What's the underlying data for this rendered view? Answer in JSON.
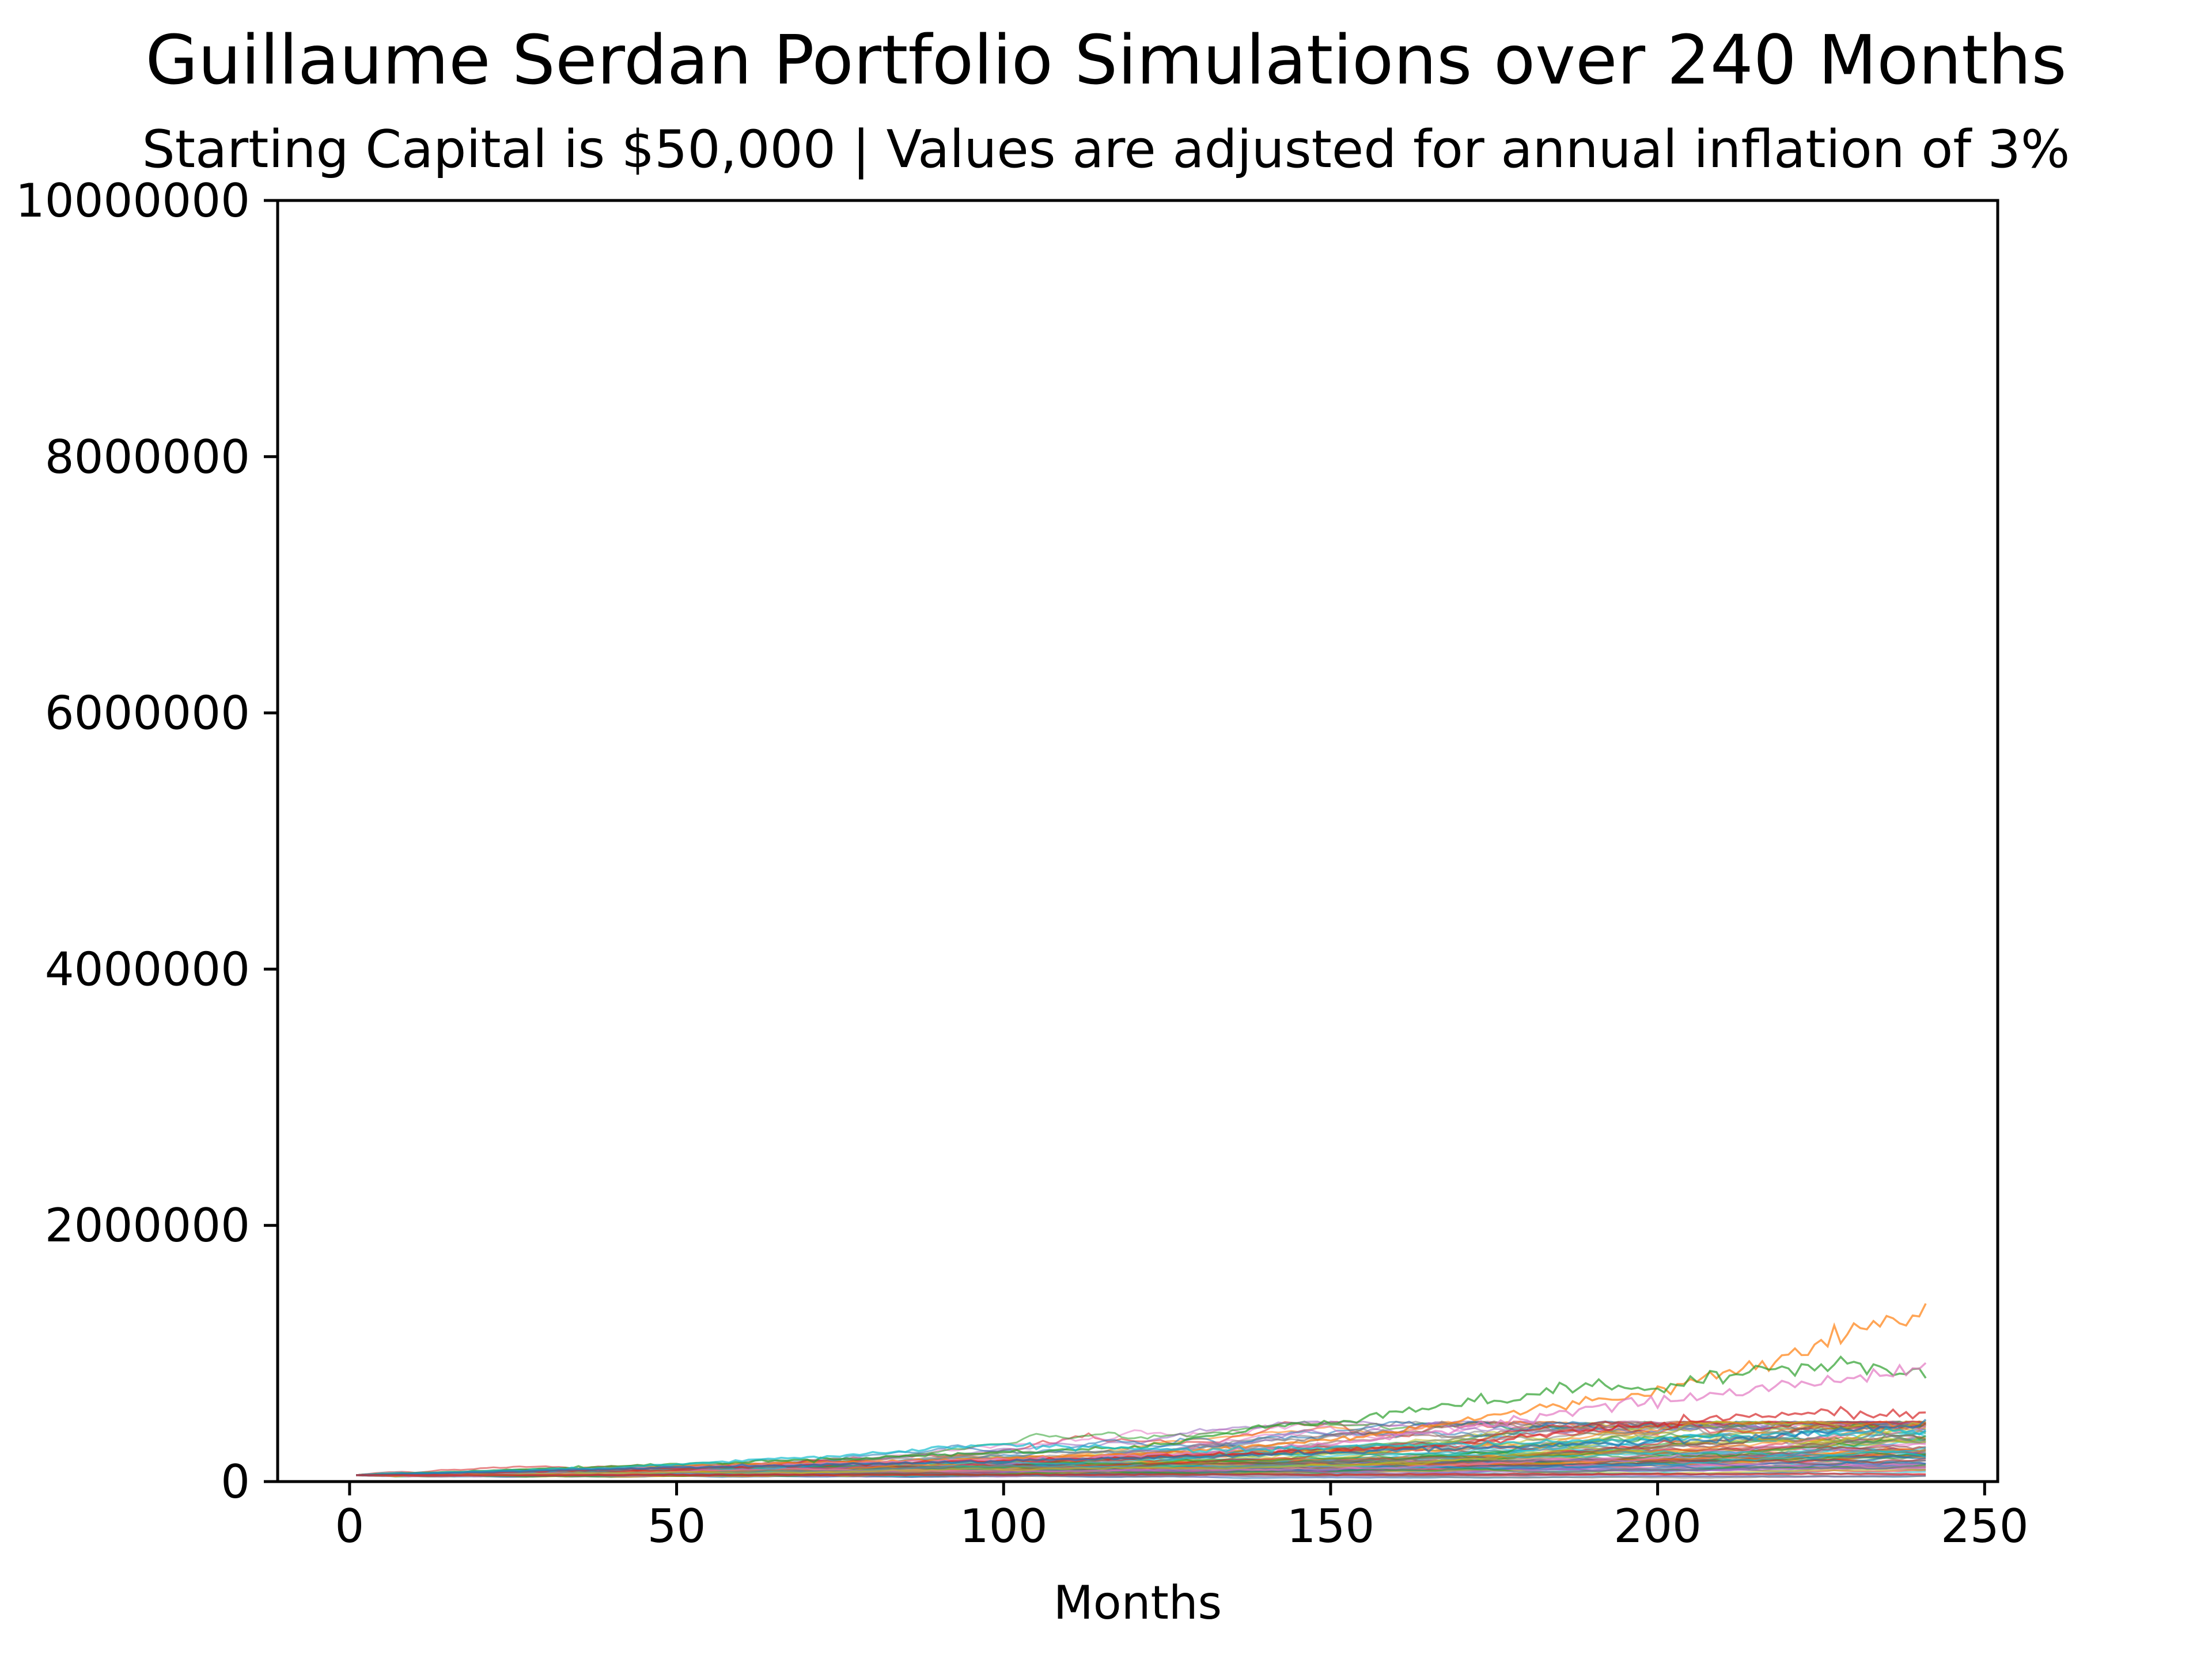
{
  "chart_data": {
    "type": "line",
    "title": "Guillaume Serdan Portfolio Simulations over 240 Months",
    "subtitle": "Starting Capital is $50,000 | Values are adjusted for annual inflation of 3%",
    "xlabel": "Months",
    "ylabel": "",
    "xlim": [
      -11,
      252
    ],
    "ylim": [
      0,
      10000000
    ],
    "x_ticks": [
      0,
      50,
      100,
      150,
      200,
      250
    ],
    "x_tick_labels": [
      "0",
      "50",
      "100",
      "150",
      "200",
      "250"
    ],
    "y_ticks": [
      0,
      2000000,
      4000000,
      6000000,
      8000000,
      10000000
    ],
    "y_tick_labels": [
      "0",
      "2000000",
      "4000000",
      "6000000",
      "8000000",
      "10000000"
    ],
    "grid": false,
    "legend": "none",
    "starting_capital": 50000,
    "months": 240,
    "simulation_count_estimate": 100,
    "highlighted_series": [
      {
        "color": "#ff7f0e",
        "points": [
          [
            0,
            50000
          ],
          [
            40,
            110000
          ],
          [
            80,
            160000
          ],
          [
            120,
            210000
          ],
          [
            150,
            330000
          ],
          [
            180,
            560000
          ],
          [
            200,
            720000
          ],
          [
            215,
            930000
          ],
          [
            225,
            1130000
          ],
          [
            232,
            1210000
          ],
          [
            236,
            1260000
          ],
          [
            240,
            1320000
          ]
        ]
      },
      {
        "color": "#2ca02c",
        "points": [
          [
            0,
            50000
          ],
          [
            40,
            120000
          ],
          [
            80,
            190000
          ],
          [
            120,
            270000
          ],
          [
            140,
            430000
          ],
          [
            150,
            470000
          ],
          [
            160,
            560000
          ],
          [
            175,
            640000
          ],
          [
            190,
            760000
          ],
          [
            200,
            720000
          ],
          [
            215,
            880000
          ],
          [
            230,
            940000
          ],
          [
            236,
            860000
          ],
          [
            240,
            830000
          ]
        ]
      },
      {
        "color": "#e377c2",
        "points": [
          [
            0,
            50000
          ],
          [
            40,
            100000
          ],
          [
            80,
            150000
          ],
          [
            120,
            200000
          ],
          [
            150,
            290000
          ],
          [
            170,
            430000
          ],
          [
            190,
            580000
          ],
          [
            210,
            690000
          ],
          [
            225,
            790000
          ],
          [
            235,
            860000
          ],
          [
            240,
            910000
          ]
        ]
      },
      {
        "color": "#d62728",
        "points": [
          [
            0,
            50000
          ],
          [
            40,
            95000
          ],
          [
            80,
            140000
          ],
          [
            120,
            190000
          ],
          [
            150,
            240000
          ],
          [
            170,
            300000
          ],
          [
            190,
            410000
          ],
          [
            210,
            490000
          ],
          [
            225,
            550000
          ],
          [
            235,
            520000
          ],
          [
            240,
            540000
          ]
        ]
      },
      {
        "color": "#17becf",
        "points": [
          [
            0,
            50000
          ],
          [
            40,
            110000
          ],
          [
            80,
            220000
          ],
          [
            95,
            290000
          ],
          [
            110,
            270000
          ],
          [
            130,
            240000
          ],
          [
            160,
            280000
          ],
          [
            190,
            320000
          ],
          [
            220,
            370000
          ],
          [
            240,
            400000
          ]
        ]
      },
      {
        "color": "#1f77b4",
        "points": [
          [
            0,
            50000
          ],
          [
            40,
            100000
          ],
          [
            80,
            140000
          ],
          [
            120,
            180000
          ],
          [
            150,
            230000
          ],
          [
            180,
            280000
          ],
          [
            210,
            330000
          ],
          [
            240,
            450000
          ]
        ]
      },
      {
        "color": "#d62728",
        "points": [
          [
            0,
            50000
          ],
          [
            60,
            52000
          ],
          [
            120,
            55000
          ],
          [
            180,
            58000
          ],
          [
            240,
            60000
          ]
        ]
      }
    ],
    "aggregate_band": {
      "description_values": "bulk of simulations end between 0 and 450000 at month 240",
      "final_range": [
        0,
        450000
      ]
    }
  }
}
